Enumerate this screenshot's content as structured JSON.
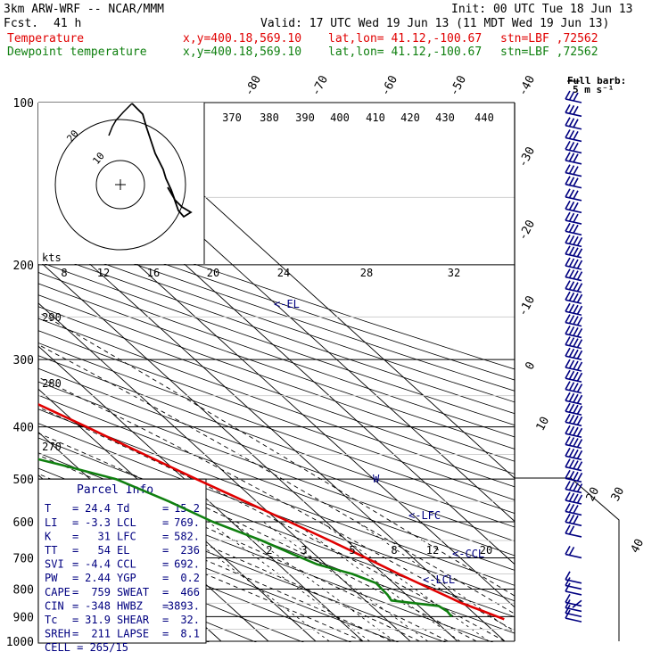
{
  "header": {
    "model": "3km ARW-WRF -- NCAR/MMM",
    "init": "Init: 00 UTC Tue 18 Jun 13",
    "fcst_label": "Fcst.",
    "fcst_value": "41 h",
    "valid": "Valid: 17 UTC Wed 19 Jun 13 (11 MDT Wed 19 Jun 13)",
    "temp_label": "Temperature",
    "dew_label": "Dewpoint temperature",
    "xy": "x,y=400.18,569.10",
    "latlon": "lat,lon= 41.12,-100.67",
    "stn": "stn=LBF ,72562"
  },
  "barb_legend": {
    "title": "Full barb:",
    "value": "5 m s⁻¹"
  },
  "parcel": {
    "title": "Parcel Info",
    "rows": [
      {
        "l": "T",
        "lv": "24.4",
        "r": "Td",
        "rv": "15.2"
      },
      {
        "l": "LI",
        "lv": "-3.3",
        "r": "LCL",
        "rv": "769."
      },
      {
        "l": "K",
        "lv": "31",
        "r": "LFC",
        "rv": "582."
      },
      {
        "l": "TT",
        "lv": "54",
        "r": "EL",
        "rv": "236"
      },
      {
        "l": "SVI",
        "lv": "-4.4",
        "r": "CCL",
        "rv": "692."
      },
      {
        "l": "PW",
        "lv": "2.44",
        "r": "YGP",
        "rv": "0.2"
      },
      {
        "l": "CAPE",
        "lv": "759",
        "r": "SWEAT",
        "rv": "466"
      },
      {
        "l": "CIN",
        "lv": "-348",
        "r": "HWBZ",
        "rv": "3893."
      },
      {
        "l": "Tc",
        "lv": "31.9",
        "r": "SHEAR",
        "rv": "32."
      },
      {
        "l": "SREH",
        "lv": "211",
        "r": "LAPSE",
        "rv": "8.1"
      }
    ],
    "cell": "CELL = 265/15"
  },
  "hodograph": {
    "units": "kts",
    "ring_labels": [
      "10",
      "20"
    ]
  },
  "levels_labels": {
    "el": "<-EL",
    "lfc": "<-LFC",
    "ccl": "<-CCL",
    "lcl": "<-LCL"
  },
  "colors": {
    "temperature": "#e00000",
    "dewpoint": "#108010",
    "navy": "#000080"
  },
  "chart_data": {
    "type": "line",
    "title": "",
    "y_axis": {
      "label": "",
      "scale": "log",
      "range": [
        1000,
        100
      ],
      "ticks": [
        100,
        200,
        300,
        400,
        500,
        600,
        700,
        800,
        900,
        1000
      ]
    },
    "isotherm_labels": [
      "-80",
      "-70",
      "-60",
      "-50",
      "-40",
      "-30",
      "-20",
      "-10",
      "0",
      "10",
      "20",
      "30",
      "40"
    ],
    "theta_labels_top": [
      "370",
      "380",
      "390",
      "400",
      "410",
      "420",
      "430",
      "440"
    ],
    "theta_labels_left": [
      "290",
      "280",
      "270"
    ],
    "mixing_ratio_labels_upper": [
      "8",
      "12",
      "16",
      "20",
      "24",
      "28",
      "32"
    ],
    "mixing_ratio_labels_lower": [
      "2",
      "3",
      "5",
      "8",
      "12",
      "20"
    ],
    "series": [
      {
        "name": "Temperature",
        "points": [
          [
            910,
            25.0
          ],
          [
            880,
            22.5
          ],
          [
            850,
            19.8
          ],
          [
            800,
            16.6
          ],
          [
            750,
            13.2
          ],
          [
            700,
            10.0
          ],
          [
            650,
            6.4
          ],
          [
            600,
            2.2
          ],
          [
            550,
            -2.4
          ],
          [
            500,
            -7.5
          ],
          [
            450,
            -12.8
          ],
          [
            400,
            -18.6
          ],
          [
            350,
            -25.5
          ],
          [
            300,
            -33.5
          ],
          [
            250,
            -43.0
          ],
          [
            230,
            -47.0
          ],
          [
            210,
            -51.5
          ],
          [
            190,
            -55.5
          ],
          [
            170,
            -58.0
          ],
          [
            150,
            -60.0
          ],
          [
            130,
            -62.0
          ],
          [
            115,
            -63.5
          ],
          [
            100,
            -64.5
          ]
        ]
      },
      {
        "name": "Dewpoint temperature",
        "points": [
          [
            900,
            14.5
          ],
          [
            880,
            14.8
          ],
          [
            860,
            14.2
          ],
          [
            840,
            5.5
          ],
          [
            820,
            6.0
          ],
          [
            780,
            6.3
          ],
          [
            750,
            3.4
          ],
          [
            720,
            -1.8
          ],
          [
            690,
            -4.5
          ],
          [
            650,
            -8.0
          ],
          [
            600,
            -14.0
          ],
          [
            550,
            -18.5
          ],
          [
            500,
            -24.5
          ],
          [
            470,
            -33.0
          ],
          [
            430,
            -46.0
          ],
          [
            400,
            -54.5
          ],
          [
            350,
            -56.5
          ],
          [
            300,
            -59.0
          ],
          [
            250,
            -63.0
          ],
          [
            210,
            -69.0
          ],
          [
            180,
            -77.0
          ],
          [
            160,
            -84.0
          ],
          [
            140,
            -90.0
          ],
          [
            125,
            -91.0
          ],
          [
            110,
            -92.0
          ],
          [
            100,
            -92.0
          ]
        ]
      }
    ],
    "wind_barbs": [
      [
        100,
        [
          1,
          3
        ]
      ],
      [
        106,
        [
          1,
          3
        ]
      ],
      [
        112,
        [
          1,
          3
        ]
      ],
      [
        118,
        [
          1,
          3
        ]
      ],
      [
        124,
        [
          1,
          3
        ]
      ],
      [
        130,
        [
          1,
          3
        ]
      ],
      [
        137,
        [
          1,
          3
        ]
      ],
      [
        144,
        [
          1,
          3
        ]
      ],
      [
        152,
        [
          1,
          3
        ]
      ],
      [
        160,
        [
          1,
          3
        ]
      ],
      [
        168,
        [
          1,
          3
        ]
      ],
      [
        176,
        [
          1,
          3
        ]
      ],
      [
        185,
        [
          1,
          4
        ]
      ],
      [
        194,
        [
          1,
          4
        ]
      ],
      [
        204,
        [
          1,
          4
        ]
      ],
      [
        214,
        [
          1,
          4
        ]
      ],
      [
        225,
        [
          1,
          4
        ]
      ],
      [
        236,
        [
          1,
          4
        ]
      ],
      [
        248,
        [
          1,
          4
        ]
      ],
      [
        260,
        [
          1,
          4
        ]
      ],
      [
        273,
        [
          1,
          4
        ]
      ],
      [
        286,
        [
          1,
          4
        ]
      ],
      [
        300,
        [
          1,
          4
        ]
      ],
      [
        315,
        [
          1,
          4
        ]
      ],
      [
        330,
        [
          1,
          4
        ]
      ],
      [
        346,
        [
          1,
          4
        ]
      ],
      [
        363,
        [
          1,
          4
        ]
      ],
      [
        380,
        [
          1,
          4
        ]
      ],
      [
        398,
        [
          1,
          4
        ]
      ],
      [
        418,
        [
          1,
          4
        ]
      ],
      [
        438,
        [
          1,
          4
        ]
      ],
      [
        460,
        [
          1,
          4
        ]
      ],
      [
        482,
        [
          1,
          4
        ]
      ],
      [
        506,
        [
          1,
          4
        ]
      ],
      [
        530,
        [
          1,
          4
        ]
      ],
      [
        556,
        [
          1,
          4
        ]
      ],
      [
        583,
        [
          1,
          3
        ]
      ],
      [
        610,
        [
          1,
          3
        ]
      ],
      [
        640,
        [
          1,
          2
        ]
      ],
      [
        700,
        [
          1,
          2
        ]
      ],
      [
        780,
        [
          1,
          1
        ]
      ],
      [
        800,
        [
          0,
          1
        ]
      ],
      [
        820,
        [
          0,
          1
        ]
      ],
      [
        840,
        [
          0,
          0
        ]
      ],
      [
        860,
        [
          0,
          1
        ]
      ],
      [
        880,
        [
          0,
          1
        ]
      ],
      [
        900,
        [
          0,
          1
        ]
      ],
      [
        920,
        [
          0,
          1
        ]
      ]
    ]
  }
}
